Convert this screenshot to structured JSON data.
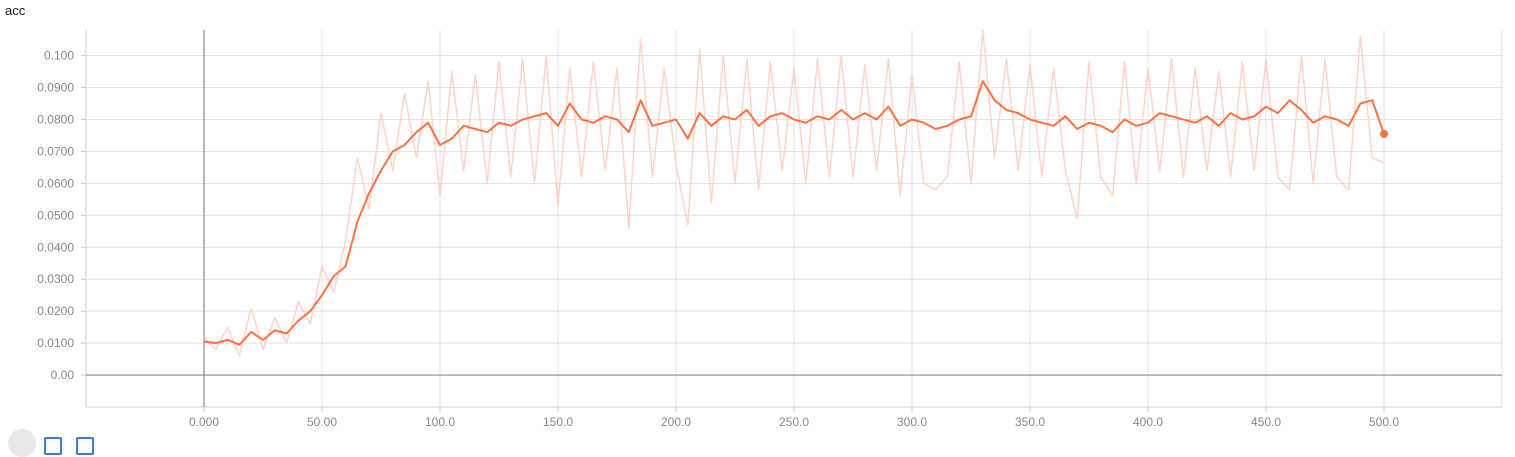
{
  "chart_data": {
    "type": "line",
    "title": "acc",
    "xlabel": "",
    "ylabel": "",
    "xlim": [
      -50,
      550
    ],
    "ylim": [
      -0.01,
      0.108
    ],
    "grid": true,
    "x_ticks": [
      0,
      50,
      100,
      150,
      200,
      250,
      300,
      350,
      400,
      450,
      500
    ],
    "x_tick_labels": [
      "0.000",
      "50.00",
      "100.0",
      "150.0",
      "200.0",
      "250.0",
      "300.0",
      "350.0",
      "400.0",
      "450.0",
      "500.0"
    ],
    "y_ticks": [
      0,
      0.01,
      0.02,
      0.03,
      0.04,
      0.05,
      0.06,
      0.07,
      0.08,
      0.09,
      0.1
    ],
    "y_tick_labels": [
      "0.00",
      "0.0100",
      "0.0200",
      "0.0300",
      "0.0400",
      "0.0500",
      "0.0600",
      "0.0700",
      "0.0800",
      "0.0900",
      "0.100"
    ],
    "smoothed_color": "#ff7043",
    "raw_color": "#ffccbc",
    "series": [
      {
        "kind": "smoothed",
        "x": [
          0,
          5,
          10,
          15,
          20,
          25,
          30,
          35,
          40,
          45,
          50,
          55,
          60,
          65,
          70,
          75,
          80,
          85,
          90,
          95,
          100,
          105,
          110,
          115,
          120,
          125,
          130,
          135,
          140,
          145,
          150,
          155,
          160,
          165,
          170,
          175,
          180,
          185,
          190,
          195,
          200,
          205,
          210,
          215,
          220,
          225,
          230,
          235,
          240,
          245,
          250,
          255,
          260,
          265,
          270,
          275,
          280,
          285,
          290,
          295,
          300,
          305,
          310,
          315,
          320,
          325,
          330,
          335,
          340,
          345,
          350,
          355,
          360,
          365,
          370,
          375,
          380,
          385,
          390,
          395,
          400,
          405,
          410,
          415,
          420,
          425,
          430,
          435,
          440,
          445,
          450,
          455,
          460,
          465,
          470,
          475,
          480,
          485,
          490,
          495,
          500
        ],
        "y": [
          0.0105,
          0.01,
          0.011,
          0.0095,
          0.0135,
          0.011,
          0.014,
          0.013,
          0.017,
          0.02,
          0.025,
          0.031,
          0.034,
          0.048,
          0.057,
          0.064,
          0.07,
          0.072,
          0.076,
          0.079,
          0.072,
          0.074,
          0.078,
          0.077,
          0.076,
          0.079,
          0.078,
          0.08,
          0.081,
          0.082,
          0.078,
          0.085,
          0.08,
          0.079,
          0.081,
          0.08,
          0.076,
          0.086,
          0.078,
          0.079,
          0.08,
          0.074,
          0.082,
          0.078,
          0.081,
          0.08,
          0.083,
          0.078,
          0.081,
          0.082,
          0.08,
          0.079,
          0.081,
          0.08,
          0.083,
          0.08,
          0.082,
          0.08,
          0.084,
          0.078,
          0.08,
          0.079,
          0.077,
          0.078,
          0.08,
          0.081,
          0.092,
          0.086,
          0.083,
          0.082,
          0.08,
          0.079,
          0.078,
          0.081,
          0.077,
          0.079,
          0.078,
          0.076,
          0.08,
          0.078,
          0.079,
          0.082,
          0.081,
          0.08,
          0.079,
          0.081,
          0.078,
          0.082,
          0.08,
          0.081,
          0.084,
          0.082,
          0.086,
          0.083,
          0.079,
          0.081,
          0.08,
          0.078,
          0.085,
          0.086,
          0.0755
        ]
      },
      {
        "kind": "raw",
        "x": [
          0,
          5,
          10,
          15,
          20,
          25,
          30,
          35,
          40,
          45,
          50,
          55,
          60,
          65,
          70,
          75,
          80,
          85,
          90,
          95,
          100,
          105,
          110,
          115,
          120,
          125,
          130,
          135,
          140,
          145,
          150,
          155,
          160,
          165,
          170,
          175,
          180,
          185,
          190,
          195,
          200,
          205,
          210,
          215,
          220,
          225,
          230,
          235,
          240,
          245,
          250,
          255,
          260,
          265,
          270,
          275,
          280,
          285,
          290,
          295,
          300,
          305,
          310,
          315,
          320,
          325,
          330,
          335,
          340,
          345,
          350,
          355,
          360,
          365,
          370,
          375,
          380,
          385,
          390,
          395,
          400,
          405,
          410,
          415,
          420,
          425,
          430,
          435,
          440,
          445,
          450,
          455,
          460,
          465,
          470,
          475,
          480,
          485,
          490,
          495,
          500
        ],
        "y": [
          0.012,
          0.008,
          0.015,
          0.006,
          0.021,
          0.008,
          0.018,
          0.01,
          0.023,
          0.016,
          0.034,
          0.026,
          0.042,
          0.068,
          0.052,
          0.082,
          0.064,
          0.088,
          0.068,
          0.092,
          0.056,
          0.095,
          0.064,
          0.094,
          0.06,
          0.098,
          0.062,
          0.099,
          0.06,
          0.1,
          0.053,
          0.096,
          0.062,
          0.098,
          0.064,
          0.096,
          0.046,
          0.105,
          0.062,
          0.096,
          0.066,
          0.047,
          0.102,
          0.054,
          0.1,
          0.06,
          0.099,
          0.058,
          0.098,
          0.064,
          0.096,
          0.06,
          0.099,
          0.062,
          0.1,
          0.062,
          0.097,
          0.064,
          0.099,
          0.056,
          0.094,
          0.06,
          0.058,
          0.062,
          0.098,
          0.06,
          0.108,
          0.068,
          0.099,
          0.064,
          0.097,
          0.062,
          0.096,
          0.064,
          0.049,
          0.098,
          0.062,
          0.056,
          0.098,
          0.06,
          0.096,
          0.064,
          0.099,
          0.062,
          0.096,
          0.064,
          0.095,
          0.062,
          0.098,
          0.064,
          0.099,
          0.062,
          0.058,
          0.1,
          0.06,
          0.099,
          0.062,
          0.058,
          0.106,
          0.068,
          0.0665
        ]
      }
    ]
  }
}
